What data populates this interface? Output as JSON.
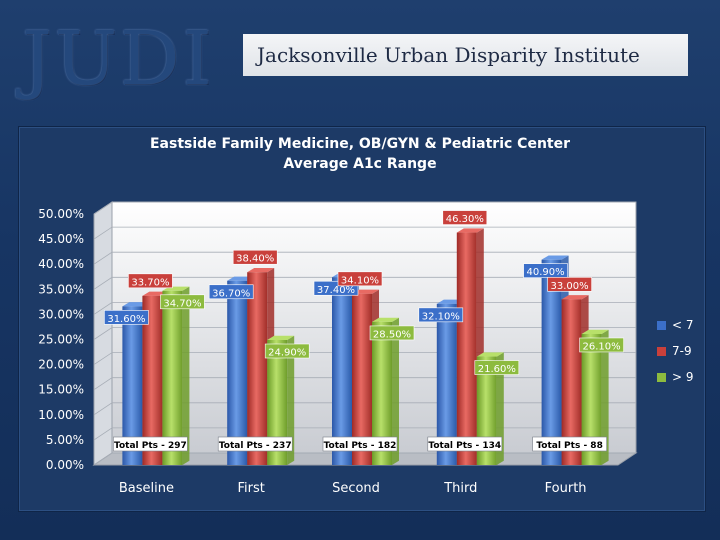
{
  "header": {
    "logo_text": "JUDI",
    "banner_text": "Jacksonville Urban Disparity Institute"
  },
  "colors": {
    "below7": "#3b6fc9",
    "7to9": "#c9403b",
    "above9": "#8dbb3f",
    "bg": "#1a3868",
    "label_bg": "#ffffff"
  },
  "chart_data": {
    "type": "bar",
    "title": "Eastside Family Medicine, OB/GYN & Pediatric Center",
    "subtitle": "Average A1c Range",
    "categories": [
      "Baseline",
      "First",
      "Second",
      "Third",
      "Fourth"
    ],
    "series": [
      {
        "name": "< 7",
        "values": [
          31.6,
          36.7,
          37.4,
          32.1,
          40.9
        ],
        "labels": [
          "31.60%",
          "36.70%",
          "37.40%",
          "32.10%",
          "40.90%"
        ]
      },
      {
        "name": "7-9",
        "values": [
          33.7,
          38.4,
          34.1,
          46.3,
          33.0
        ],
        "labels": [
          "33.70%",
          "38.40%",
          "34.10%",
          "46.30%",
          "33.00%"
        ]
      },
      {
        "name": "> 9",
        "values": [
          34.7,
          24.9,
          28.5,
          21.6,
          26.1
        ],
        "labels": [
          "34.70%",
          "24.90%",
          "28.50%",
          "21.60%",
          "26.10%"
        ]
      }
    ],
    "total_pts": [
      "Total Pts - 297",
      "Total Pts - 237",
      "Total Pts - 182",
      "Total Pts - 134",
      "Total Pts - 88"
    ],
    "y_ticks": [
      "0.00%",
      "5.00%",
      "10.00%",
      "15.00%",
      "20.00%",
      "25.00%",
      "30.00%",
      "35.00%",
      "40.00%",
      "45.00%",
      "50.00%"
    ],
    "ylim": [
      0,
      50
    ],
    "ylabel": "",
    "xlabel": "",
    "legend_position": "right"
  }
}
